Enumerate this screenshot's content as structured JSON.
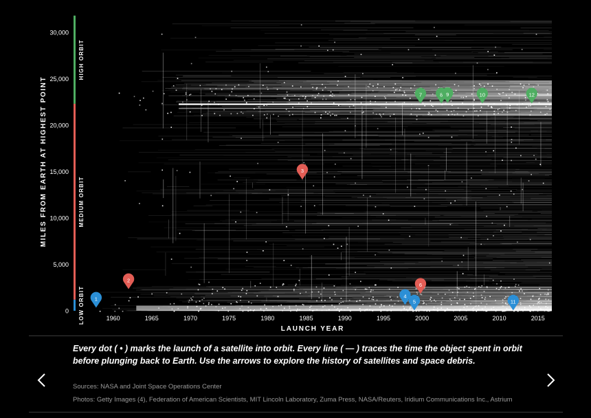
{
  "chart_data": {
    "type": "scatter",
    "title": "",
    "xlabel": "LAUNCH YEAR",
    "ylabel": "MILES FROM EARTH AT HIGHEST POINT",
    "xlim": [
      1955.5,
      2016.8
    ],
    "ylim": [
      0,
      32000
    ],
    "x_ticks": [
      1960,
      1965,
      1970,
      1975,
      1980,
      1985,
      1990,
      1995,
      2000,
      2005,
      2010,
      2015
    ],
    "y_ticks": [
      0,
      5000,
      10000,
      15000,
      20000,
      25000,
      30000
    ],
    "y_tick_labels": [
      "0",
      "5,000",
      "10,000",
      "15,000",
      "20,000",
      "25,000",
      "30,000"
    ],
    "orbit_bands": [
      {
        "label": "LOW ORBIT",
        "from": 0,
        "to": 1200,
        "color": "#2b8fd6"
      },
      {
        "label": "MEDIUM ORBIT",
        "from": 1200,
        "to": 22300,
        "color": "#e35d55"
      },
      {
        "label": "HIGH ORBIT",
        "from": 22300,
        "to": 31800,
        "color": "#4fae62"
      }
    ],
    "markers": [
      {
        "label": "1",
        "year": 1957.8,
        "miles": 1300,
        "color": "#2b8fd6"
      },
      {
        "label": "2",
        "year": 1962.0,
        "miles": 3300,
        "color": "#e35d55"
      },
      {
        "label": "3",
        "year": 1984.5,
        "miles": 15100,
        "color": "#e35d55"
      },
      {
        "label": "4",
        "year": 1997.8,
        "miles": 1600,
        "color": "#2b8fd6"
      },
      {
        "label": "5",
        "year": 1999.0,
        "miles": 1000,
        "color": "#2b8fd6"
      },
      {
        "label": "6",
        "year": 1999.8,
        "miles": 2800,
        "color": "#e35d55"
      },
      {
        "label": "7",
        "year": 1999.8,
        "miles": 23300,
        "color": "#4fae62"
      },
      {
        "label": "8",
        "year": 2002.5,
        "miles": 23300,
        "color": "#4fae62"
      },
      {
        "label": "9",
        "year": 2003.3,
        "miles": 23350,
        "color": "#4fae62"
      },
      {
        "label": "10",
        "year": 2007.8,
        "miles": 23300,
        "color": "#4fae62"
      },
      {
        "label": "11",
        "year": 2011.8,
        "miles": 1000,
        "color": "#2b8fd6"
      },
      {
        "label": "12",
        "year": 2014.2,
        "miles": 23300,
        "color": "#4fae62"
      }
    ]
  },
  "caption": "Every dot ( • ) marks the launch of a satellite into orbit. Every line ( — ) traces the time the object spent in orbit before plunging back to Earth. Use the arrows to explore the history of satellites and space debris.",
  "sources": "Sources: NASA and Joint Space Operations Center",
  "photos": "Photos: Getty Images (4), Federation of American Scientists, MIT Lincoln Laboratory, Zuma Press, NASA/Reuters, Iridium Communications Inc., Astrium",
  "nav": {
    "prev_icon": "chevron-left-icon",
    "next_icon": "chevron-right-icon"
  },
  "colors": {
    "background": "#000000",
    "axis_text": "#ffffff",
    "muted": "#9a9a9a"
  }
}
